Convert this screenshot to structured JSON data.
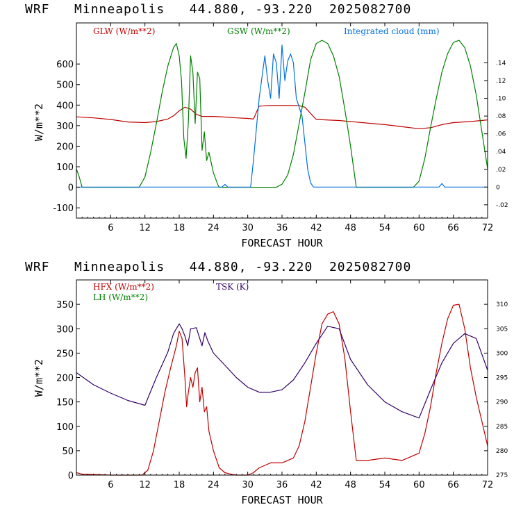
{
  "chart_data": [
    {
      "type": "line",
      "title": "WRF   Minneapolis   44.880, -93.220  2025082700",
      "xlabel": "FORECAST HOUR",
      "ylabel": "W/m**2",
      "xlim": [
        0,
        72
      ],
      "ylim": [
        -150,
        800
      ],
      "x_ticks": [
        6,
        12,
        18,
        24,
        30,
        36,
        42,
        48,
        54,
        60,
        66,
        72
      ],
      "y_ticks": [
        -100,
        0,
        100,
        200,
        300,
        400,
        500,
        600
      ],
      "y2lim": [
        -0.035,
        0.185
      ],
      "y2_ticks": [
        -0.02,
        0,
        0.02,
        0.04,
        0.06,
        0.08,
        0.1,
        0.12,
        0.14
      ],
      "y2_tick_labels": [
        "-.02",
        "0",
        ".02",
        ".04",
        ".06",
        ".08",
        ".10",
        ".12",
        ".14"
      ],
      "series": [
        {
          "name": "GLW (W/m**2)",
          "color": "#c00000",
          "axis": "left",
          "x": [
            0,
            3,
            6,
            9,
            12,
            14,
            16,
            17,
            18,
            19,
            20,
            21,
            22,
            24,
            26,
            28,
            30,
            31,
            32,
            34,
            36,
            38,
            39,
            40,
            42,
            46,
            48,
            50,
            54,
            57,
            60,
            62,
            64,
            66,
            69,
            72
          ],
          "y": [
            343,
            338,
            330,
            318,
            315,
            320,
            332,
            348,
            372,
            390,
            380,
            355,
            345,
            345,
            342,
            338,
            335,
            332,
            395,
            398,
            398,
            398,
            397,
            390,
            330,
            325,
            320,
            315,
            305,
            295,
            285,
            290,
            305,
            315,
            320,
            328
          ]
        },
        {
          "name": "GSW (W/m**2)",
          "color": "#008000",
          "axis": "left",
          "x": [
            0,
            0.5,
            1,
            11,
            12,
            13,
            14,
            15,
            16,
            17,
            17.5,
            18,
            18.4,
            18.8,
            19.2,
            19.6,
            20,
            20.4,
            20.8,
            21.2,
            21.6,
            22,
            22.4,
            22.8,
            23.2,
            24,
            24.8,
            25,
            35,
            36,
            37,
            38,
            39,
            40,
            41,
            42,
            43,
            44,
            45,
            46,
            47,
            48,
            49,
            59,
            60,
            61,
            62,
            63,
            64,
            65,
            66,
            67,
            68,
            69,
            70,
            71,
            72
          ],
          "y": [
            90,
            50,
            0,
            0,
            50,
            170,
            310,
            460,
            590,
            680,
            700,
            640,
            520,
            240,
            140,
            320,
            640,
            560,
            310,
            560,
            530,
            180,
            270,
            130,
            170,
            70,
            10,
            0,
            0,
            15,
            60,
            160,
            310,
            460,
            620,
            700,
            715,
            700,
            640,
            540,
            380,
            200,
            0,
            0,
            30,
            140,
            290,
            430,
            560,
            650,
            705,
            715,
            680,
            590,
            450,
            270,
            90
          ]
        },
        {
          "name": "Integrated cloud (mm)",
          "color": "#0070e0",
          "axis": "right",
          "x": [
            0,
            25.5,
            26,
            26.5,
            30.5,
            31,
            32,
            33,
            33.5,
            34,
            34.5,
            35,
            35.5,
            36,
            36.5,
            37,
            37.5,
            38,
            38.5,
            39,
            39.5,
            40,
            40.5,
            41,
            41.5,
            42,
            63.5,
            64,
            64.5,
            72
          ],
          "y": [
            0,
            0,
            0.003,
            0,
            0,
            0.03,
            0.1,
            0.148,
            0.12,
            0.1,
            0.15,
            0.14,
            0.1,
            0.16,
            0.12,
            0.142,
            0.15,
            0.14,
            0.1,
            0.09,
            0.08,
            0.05,
            0.02,
            0.005,
            0,
            0,
            0,
            0.004,
            0,
            0
          ]
        }
      ]
    },
    {
      "type": "line",
      "title": "WRF   Minneapolis   44.880, -93.220  2025082700",
      "xlabel": "FORECAST HOUR",
      "ylabel": "W/m**2",
      "xlim": [
        0,
        72
      ],
      "ylim": [
        0,
        400
      ],
      "x_ticks": [
        6,
        12,
        18,
        24,
        30,
        36,
        42,
        48,
        54,
        60,
        66,
        72
      ],
      "y_ticks": [
        0,
        50,
        100,
        150,
        200,
        250,
        300,
        350
      ],
      "y2lim": [
        275,
        315
      ],
      "y2_ticks": [
        275,
        280,
        285,
        290,
        295,
        300,
        305,
        310
      ],
      "y2_tick_labels": [
        "275",
        "280",
        "285",
        "290",
        "295",
        "300",
        "305",
        "310"
      ],
      "series": [
        {
          "name": "HFX (W/m**2)",
          "color": "#c00000",
          "axis": "left",
          "x": [
            0,
            1,
            6,
            11.5,
            12.5,
            13.5,
            14.5,
            15.5,
            16.5,
            17.5,
            18,
            18.5,
            19,
            19.3,
            19.6,
            20,
            20.4,
            20.8,
            21.2,
            21.6,
            22,
            22.4,
            22.8,
            23.2,
            24,
            25,
            26,
            27,
            28,
            30,
            31,
            32,
            33,
            34,
            36,
            37,
            38,
            39,
            40,
            41,
            42,
            43,
            44,
            45,
            46,
            47,
            48,
            49,
            51,
            54,
            57,
            59,
            60,
            61,
            62,
            63,
            64,
            65,
            66,
            67,
            68,
            69,
            70,
            71,
            72
          ],
          "y": [
            5,
            2,
            0,
            0,
            10,
            50,
            110,
            170,
            220,
            265,
            295,
            280,
            200,
            140,
            170,
            200,
            180,
            210,
            220,
            150,
            180,
            130,
            140,
            90,
            50,
            15,
            5,
            2,
            0,
            0,
            5,
            15,
            20,
            25,
            25,
            30,
            35,
            60,
            110,
            180,
            250,
            310,
            330,
            335,
            310,
            240,
            130,
            30,
            30,
            35,
            30,
            40,
            45,
            85,
            140,
            210,
            270,
            320,
            348,
            350,
            300,
            220,
            160,
            110,
            60
          ]
        },
        {
          "name": "LH (W/m**2)",
          "color": "#008000",
          "axis": "left",
          "x": [],
          "y": []
        },
        {
          "name": "TSK (K)",
          "color": "#330066",
          "axis": "right",
          "x": [
            0,
            3,
            6,
            9,
            12,
            14,
            16,
            17,
            18,
            18.5,
            19,
            19.5,
            20,
            21,
            22,
            22.5,
            23,
            24,
            26,
            28,
            30,
            31,
            32,
            34,
            36,
            38,
            40,
            42,
            44,
            46,
            48,
            51,
            54,
            57,
            60,
            62,
            64,
            66,
            68,
            70,
            72
          ],
          "y": [
            296,
            293.5,
            291.8,
            290.3,
            289.3,
            295,
            300.2,
            304,
            306,
            305,
            303.5,
            301.5,
            305,
            305.2,
            301.5,
            304.2,
            302.5,
            300,
            297.5,
            295,
            293,
            292.5,
            292,
            292,
            292.5,
            294.5,
            298,
            302,
            305.5,
            305,
            298.7,
            293.5,
            290,
            288,
            286.7,
            292.5,
            298,
            302,
            304,
            303,
            296.5
          ]
        }
      ]
    }
  ]
}
